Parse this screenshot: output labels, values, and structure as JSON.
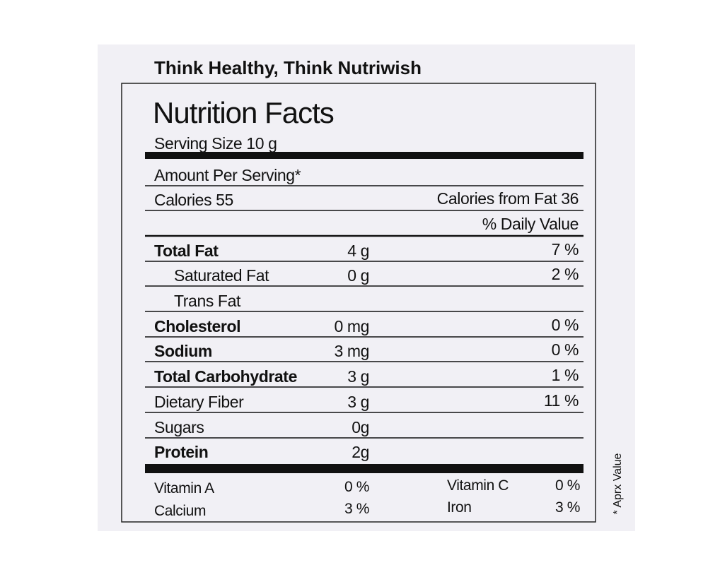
{
  "header": {
    "brand": "Think Healthy, Think Nutriwish"
  },
  "label": {
    "title": "Nutrition Facts",
    "serving_size": "Serving Size 10 g",
    "amount_per_serving": "Amount Per Serving*",
    "calories": "Calories 55",
    "calories_from_fat": "Calories from Fat 36",
    "daily_value_header": "% Daily Value",
    "rows": [
      {
        "name": "Total Fat",
        "amount": "4 g",
        "dv": "7 %"
      },
      {
        "name": "Saturated Fat",
        "amount": "0 g",
        "dv": "2 %"
      },
      {
        "name": "Trans Fat"
      },
      {
        "name": "Cholesterol",
        "amount": "0 mg",
        "dv": "0 %"
      },
      {
        "name": "Sodium",
        "amount": "3 mg",
        "dv": "0 %"
      },
      {
        "name": "Total Carbohydrate",
        "amount": "3 g",
        "dv": "1 %"
      },
      {
        "name": "Dietary Fiber",
        "amount": "3 g",
        "dv": "11 %"
      },
      {
        "name": "Sugars",
        "amount": "0g"
      },
      {
        "name": "Protein",
        "amount": "2g"
      }
    ],
    "vitamins": [
      [
        {
          "name": "Vitamin A",
          "dv": "0 %"
        },
        {
          "name": "Vitamin C",
          "dv": "0 %"
        }
      ],
      [
        {
          "name": "Calcium",
          "dv": "3 %"
        },
        {
          "name": "Iron",
          "dv": "3 %"
        }
      ]
    ],
    "footnote": "* Aprx Value"
  }
}
